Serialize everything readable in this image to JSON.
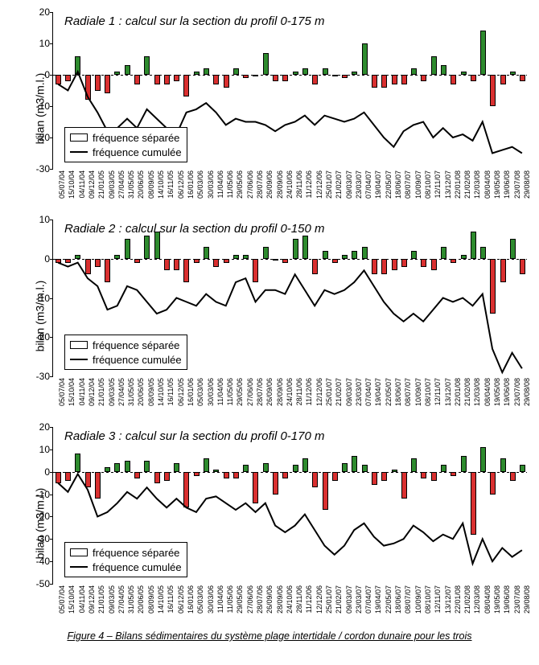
{
  "figure_caption": "Figure 4 – Bilans sédimentaires du système plage intertidale / cordon dunaire pour les trois",
  "y_axis_label": "bilan (m3/m.l.)",
  "legend": {
    "separee": "fréquence séparée",
    "cumulee": "fréquence cumulée"
  },
  "colors": {
    "positive_bar": "#2e8b2e",
    "negative_bar": "#d93030",
    "line": "#000000",
    "background": "#ffffff",
    "axis": "#000000"
  },
  "fonts": {
    "title_size_pt": 15,
    "tick_size_pt": 12,
    "xlabel_size_pt": 9,
    "legend_size_pt": 13
  },
  "x_labels": [
    "05/07/04",
    "15/10/04",
    "04/11/04",
    "09/12/04",
    "21/01/05",
    "09/03/05",
    "27/04/05",
    "31/05/05",
    "20/06/05",
    "08/09/05",
    "14/10/05",
    "16/11/05",
    "06/12/05",
    "16/01/06",
    "05/03/06",
    "30/03/06",
    "11/04/06",
    "11/05/06",
    "29/05/06",
    "27/06/06",
    "28/07/06",
    "26/09/06",
    "28/09/06",
    "24/10/06",
    "28/11/06",
    "11/12/06",
    "12/12/06",
    "25/01/07",
    "21/02/07",
    "09/03/07",
    "23/03/07",
    "07/04/07",
    "19/04/07",
    "22/05/07",
    "18/06/07",
    "08/07/07",
    "10/09/07",
    "08/10/07",
    "12/11/07",
    "13/12/07",
    "22/01/08",
    "21/02/08",
    "12/03/08",
    "08/04/08",
    "19/05/08",
    "19/06/08",
    "23/07/08",
    "29/08/08"
  ],
  "panels": [
    {
      "id": "radiale1",
      "title": "Radiale 1 : calcul sur la section du profil 0-175 m",
      "ylim": [
        -30,
        20
      ],
      "ytick_step": 10,
      "bars": [
        -3,
        -2,
        6,
        -8,
        -5,
        -6,
        1,
        3,
        -3,
        6,
        -3,
        -3,
        -2,
        -7,
        1,
        2,
        -3,
        -4,
        2,
        -1,
        0,
        7,
        -2,
        -2,
        1,
        2,
        -3,
        2,
        0,
        -1,
        1,
        10,
        -4,
        -4,
        -3,
        -3,
        2,
        -2,
        6,
        3,
        -3,
        1,
        -2,
        14,
        -10,
        -3,
        1,
        -2
      ],
      "cumulative": [
        -3,
        -5,
        1,
        -7,
        -12,
        -18,
        -17,
        -14,
        -17,
        -11,
        -14,
        -17,
        -19,
        -12,
        -11,
        -9,
        -12,
        -16,
        -14,
        -15,
        -15,
        -16,
        -18,
        -16,
        -15,
        -13,
        -16,
        -13,
        -14,
        -15,
        -14,
        -12,
        -16,
        -20,
        -23,
        -18,
        -16,
        -15,
        -20,
        -17,
        -20,
        -19,
        -21,
        -15,
        -25,
        -24,
        -23,
        -25
      ]
    },
    {
      "id": "radiale2",
      "title": "Radiale 2 : calcul sur la section du profil 0-150 m",
      "ylim": [
        -30,
        10
      ],
      "ytick_step": 10,
      "bars": [
        -1,
        -1,
        1,
        -4,
        -2,
        -6,
        1,
        5,
        -1,
        6,
        7,
        -3,
        -3,
        -6,
        -1,
        3,
        -2,
        -1,
        1,
        1,
        -6,
        3,
        0,
        -1,
        5,
        6,
        -4,
        2,
        -1,
        1,
        2,
        3,
        -4,
        -4,
        -3,
        -2,
        2,
        -2,
        -3,
        3,
        -1,
        1,
        7,
        3,
        -14,
        -6,
        5,
        -4
      ],
      "cumulative": [
        -1,
        -2,
        -1,
        -5,
        -7,
        -13,
        -12,
        -7,
        -8,
        -11,
        -14,
        -13,
        -10,
        -11,
        -12,
        -9,
        -11,
        -12,
        -6,
        -5,
        -11,
        -8,
        -8,
        -9,
        -4,
        -8,
        -12,
        -8,
        -9,
        -8,
        -6,
        -3,
        -7,
        -11,
        -14,
        -16,
        -14,
        -16,
        -13,
        -10,
        -11,
        -10,
        -12,
        -9,
        -23,
        -29,
        -24,
        -28
      ]
    },
    {
      "id": "radiale3",
      "title": "Radiale 3 : calcul sur la section du profil 0-170 m",
      "ylim": [
        -50,
        20
      ],
      "ytick_step": 10,
      "bars": [
        -5,
        -4,
        8,
        -7,
        -12,
        2,
        4,
        5,
        -3,
        5,
        -5,
        -4,
        4,
        -16,
        -2,
        6,
        1,
        -3,
        -3,
        3,
        -14,
        4,
        -10,
        -3,
        3,
        6,
        -7,
        -17,
        -4,
        4,
        7,
        3,
        -6,
        -4,
        1,
        -12,
        6,
        -3,
        -4,
        3,
        -2,
        7,
        -28,
        11,
        -10,
        6,
        -4,
        3
      ],
      "cumulative": [
        -5,
        -9,
        -1,
        -8,
        -20,
        -18,
        -14,
        -9,
        -12,
        -7,
        -12,
        -16,
        -12,
        -16,
        -18,
        -12,
        -11,
        -14,
        -17,
        -14,
        -18,
        -14,
        -24,
        -27,
        -24,
        -19,
        -26,
        -33,
        -37,
        -33,
        -26,
        -23,
        -29,
        -33,
        -32,
        -30,
        -24,
        -27,
        -31,
        -28,
        -30,
        -23,
        -41,
        -30,
        -40,
        -34,
        -38,
        -35
      ]
    }
  ]
}
